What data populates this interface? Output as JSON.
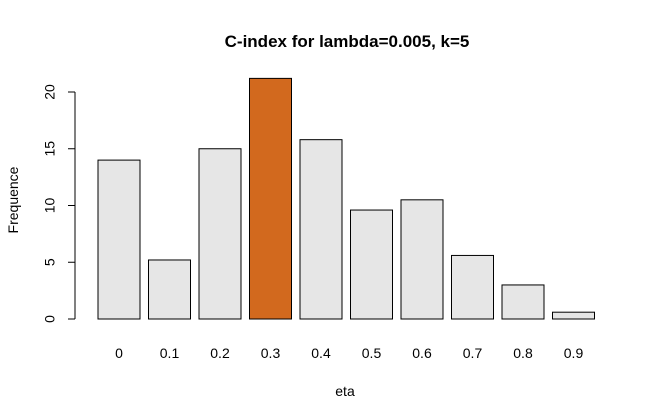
{
  "chart_data": {
    "type": "bar",
    "title": "C-index for lambda=0.005, k=5",
    "xlabel": "eta",
    "ylabel": "Frequence",
    "categories": [
      "0",
      "0.1",
      "0.2",
      "0.3",
      "0.4",
      "0.5",
      "0.6",
      "0.7",
      "0.8",
      "0.9"
    ],
    "values": [
      14.0,
      5.2,
      15.0,
      21.2,
      15.8,
      9.6,
      10.5,
      5.6,
      3.0,
      0.6
    ],
    "highlight_index": 3,
    "bar_color": "#e6e6e6",
    "highlight_color": "#d2691e",
    "ylim": [
      0,
      22
    ],
    "yticks": [
      0,
      5,
      10,
      15,
      20
    ],
    "grid": false,
    "legend": false
  }
}
